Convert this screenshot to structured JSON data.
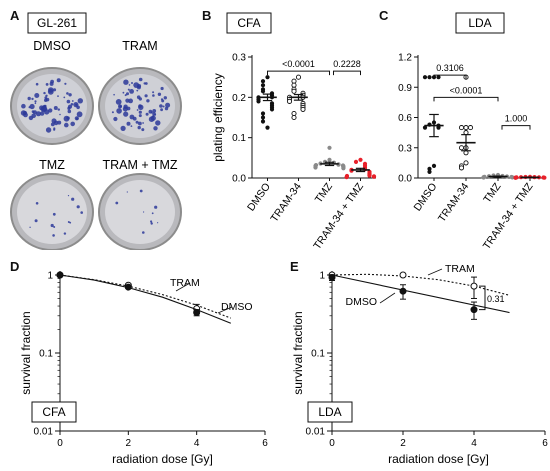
{
  "panel_a": {
    "letter": "A",
    "cell_line": "GL-261",
    "dishes": [
      {
        "label": "DMSO",
        "colony_density": "high"
      },
      {
        "label": "TRAM",
        "colony_density": "high"
      },
      {
        "label": "TMZ",
        "colony_density": "low"
      },
      {
        "label": "TRAM + TMZ",
        "colony_density": "very-low"
      }
    ]
  },
  "colors": {
    "dish_rim": "#8c8c8c",
    "colony": "#2d3a9a",
    "axis": "#111111",
    "red_points": "#e8202a",
    "gray_points": "#8a8a8a"
  },
  "chart_data": [
    {
      "panel": "B",
      "type": "scatter",
      "box_label": "CFA",
      "ylabel": "plating efficiency",
      "ylim": [
        0,
        0.3
      ],
      "yticks": [
        "0.0",
        "0.1",
        "0.2",
        "0.3"
      ],
      "categories": [
        "DMSO",
        "TRAM-34",
        "TMZ",
        "TRAM-34 + TMZ"
      ],
      "point_colors": [
        "#111111",
        "#111111",
        "#8a8a8a",
        "#e8202a"
      ],
      "point_style": [
        "filled",
        "open",
        "filled",
        "filled"
      ],
      "points": [
        [
          0.25,
          0.24,
          0.23,
          0.22,
          0.215,
          0.21,
          0.205,
          0.2,
          0.2,
          0.195,
          0.19,
          0.185,
          0.18,
          0.175,
          0.17,
          0.16,
          0.15,
          0.14,
          0.125
        ],
        [
          0.25,
          0.24,
          0.23,
          0.22,
          0.215,
          0.21,
          0.205,
          0.2,
          0.2,
          0.195,
          0.19,
          0.185,
          0.18,
          0.175,
          0.17,
          0.16,
          0.15
        ],
        [
          0.075,
          0.045,
          0.04,
          0.038,
          0.036,
          0.034,
          0.033,
          0.032,
          0.031,
          0.03,
          0.029,
          0.028,
          0.027,
          0.026,
          0.025,
          0.024
        ],
        [
          0.045,
          0.04,
          0.035,
          0.03,
          0.025,
          0.022,
          0.02,
          0.018,
          0.015,
          0.012,
          0.01,
          0.008,
          0.006,
          0.005,
          0.004,
          0.003,
          0.002
        ]
      ],
      "means": [
        0.2,
        0.2,
        0.035,
        0.02
      ],
      "sem": [
        0.008,
        0.007,
        0.004,
        0.004
      ],
      "comparisons": [
        {
          "from": 0,
          "to": 2,
          "label": "<0.0001",
          "level": 0.265
        },
        {
          "from": 2,
          "to": 3,
          "label": "0.2228",
          "level": 0.265
        }
      ]
    },
    {
      "panel": "C",
      "type": "scatter",
      "box_label": "LDA",
      "ylim": [
        0,
        1.2
      ],
      "yticks": [
        "0.0",
        "0.3",
        "0.6",
        "0.9",
        "1.2"
      ],
      "categories": [
        "DMSO",
        "TRAM-34",
        "TMZ",
        "TRAM-34 + TMZ"
      ],
      "point_colors": [
        "#111111",
        "#111111",
        "#8a8a8a",
        "#e8202a"
      ],
      "point_style": [
        "filled",
        "open",
        "filled",
        "filled"
      ],
      "points": [
        [
          1.0,
          1.0,
          1.0,
          1.0,
          0.55,
          0.53,
          0.52,
          0.5,
          0.5,
          0.12,
          0.09,
          0.06
        ],
        [
          1.0,
          0.5,
          0.5,
          0.5,
          0.45,
          0.3,
          0.3,
          0.25,
          0.15,
          0.12,
          0.1
        ],
        [
          0.03,
          0.025,
          0.02,
          0.018,
          0.015,
          0.012,
          0.01,
          0.008,
          0.006,
          0.005
        ],
        [
          0.012,
          0.01,
          0.009,
          0.008,
          0.007,
          0.006,
          0.005,
          0.004,
          0.003,
          0.002
        ]
      ],
      "means": [
        0.52,
        0.35,
        0.015,
        0.006
      ],
      "sem": [
        0.11,
        0.08,
        0.004,
        0.002
      ],
      "comparisons": [
        {
          "from": 0,
          "to": 1,
          "label": "0.3106",
          "level": 1.02
        },
        {
          "from": 0,
          "to": 2,
          "label": "<0.0001",
          "level": 0.8
        },
        {
          "from": 2,
          "to": 3,
          "label": "1.000",
          "level": 0.52
        }
      ]
    },
    {
      "panel": "D",
      "type": "line",
      "box_label": "CFA",
      "xlabel": "radiation dose [Gy]",
      "ylabel": "survival fraction",
      "xlim": [
        0,
        6
      ],
      "xticks": [
        "0",
        "2",
        "4",
        "6"
      ],
      "ylim": [
        0.01,
        1
      ],
      "yscale": "log",
      "yticks": [
        "0.01",
        "0.1",
        "1"
      ],
      "series": [
        {
          "name": "TRAM",
          "style": "dotted",
          "marker": "open",
          "x": [
            0,
            2,
            4
          ],
          "y": [
            1.0,
            0.74,
            0.37
          ],
          "err": [
            0.0,
            0.03,
            0.05
          ],
          "fit_x": [
            0,
            1,
            2,
            3,
            4,
            5
          ],
          "fit_y": [
            1.0,
            0.87,
            0.72,
            0.56,
            0.41,
            0.28
          ]
        },
        {
          "name": "DMSO",
          "style": "solid",
          "marker": "filled",
          "x": [
            0,
            2,
            4
          ],
          "y": [
            1.0,
            0.7,
            0.33
          ],
          "err": [
            0.0,
            0.03,
            0.03
          ],
          "fit_x": [
            0,
            1,
            2,
            3,
            4,
            5
          ],
          "fit_y": [
            1.0,
            0.86,
            0.69,
            0.52,
            0.36,
            0.24
          ]
        }
      ]
    },
    {
      "panel": "E",
      "type": "line",
      "box_label": "LDA",
      "xlabel": "radiation dose [Gy]",
      "ylabel": "survival fraction",
      "xlim": [
        0,
        6
      ],
      "xticks": [
        "0",
        "2",
        "4",
        "6"
      ],
      "ylim": [
        0.01,
        1
      ],
      "yscale": "log",
      "yticks": [
        "0.01",
        "0.1",
        "1"
      ],
      "annotation": "0.31",
      "series": [
        {
          "name": "TRAM",
          "style": "dotted",
          "marker": "open",
          "x": [
            0,
            2,
            4
          ],
          "y": [
            1.0,
            1.0,
            0.72
          ],
          "err": [
            0.0,
            0.0,
            0.22
          ],
          "fit_x": [
            0,
            1,
            2,
            3,
            4,
            5
          ],
          "fit_y": [
            1.0,
            1.02,
            0.97,
            0.87,
            0.72,
            0.55
          ]
        },
        {
          "name": "DMSO",
          "style": "solid",
          "marker": "filled",
          "x": [
            0,
            2,
            4
          ],
          "y": [
            0.93,
            0.62,
            0.36
          ],
          "err": [
            0.08,
            0.13,
            0.09
          ],
          "fit_x": [
            0,
            5
          ],
          "fit_y": [
            1.0,
            0.33
          ]
        }
      ]
    }
  ]
}
